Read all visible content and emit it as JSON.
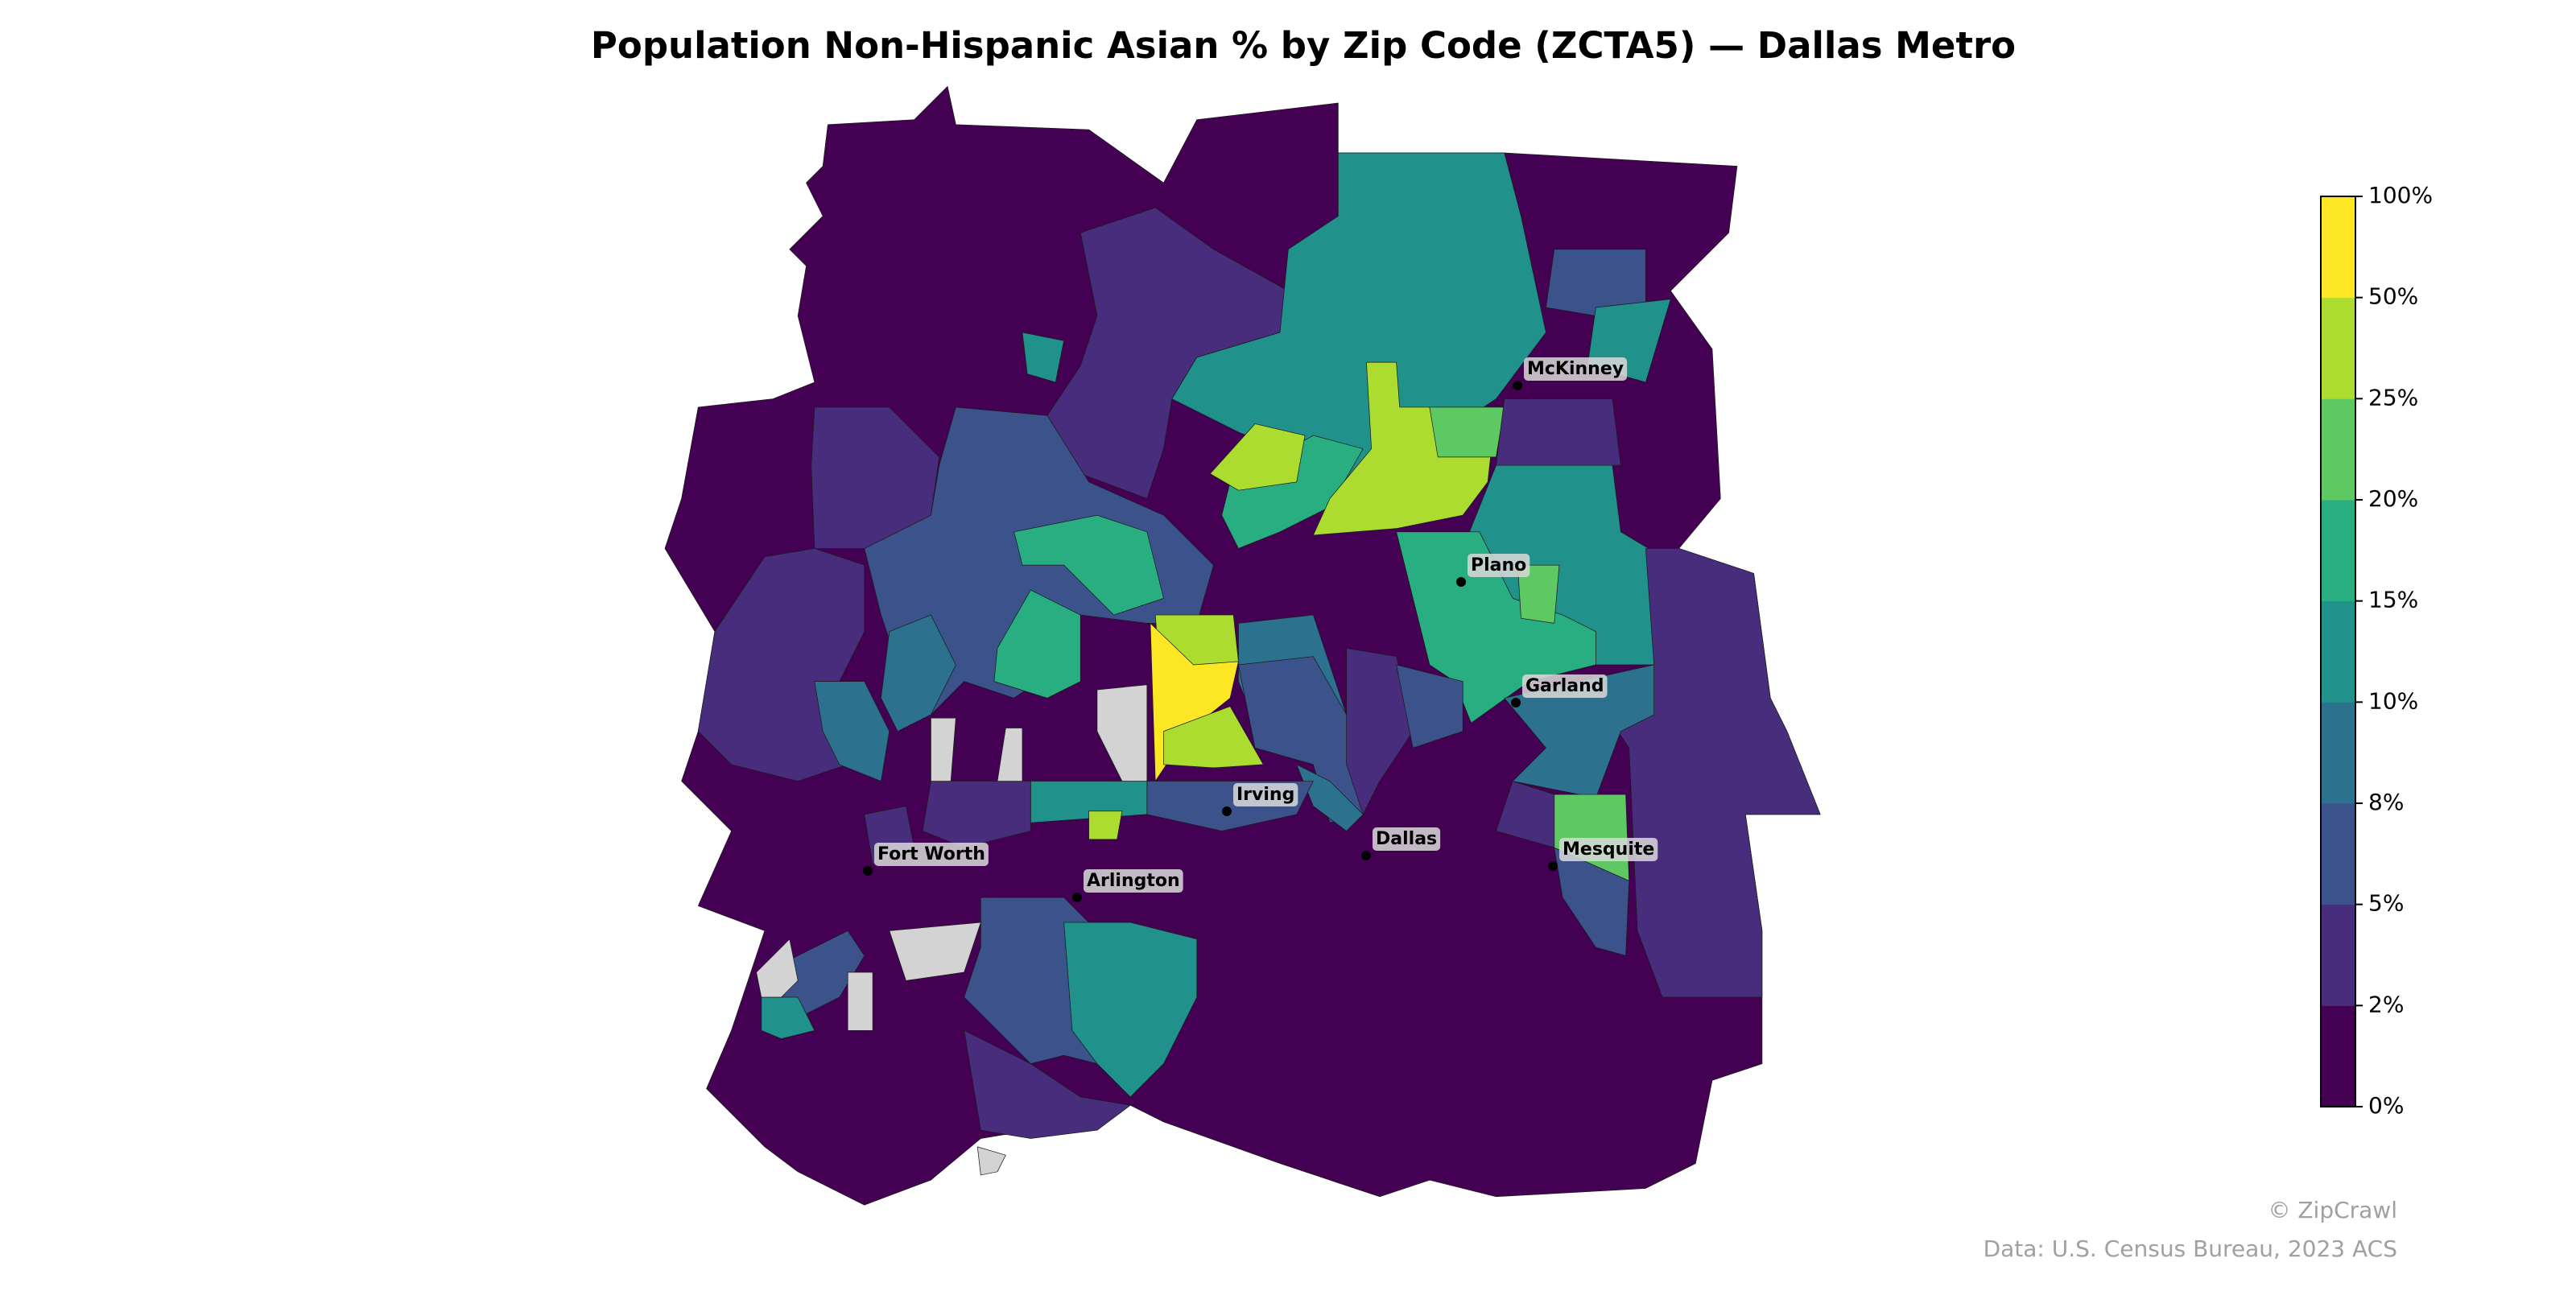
{
  "title": "Population Non-Hispanic Asian % by Zip Code (ZCTA5) — Dallas Metro",
  "colorbar": {
    "ticks": [
      {
        "value": 0,
        "label": "0%"
      },
      {
        "value": 2,
        "label": "2%"
      },
      {
        "value": 5,
        "label": "5%"
      },
      {
        "value": 8,
        "label": "8%"
      },
      {
        "value": 10,
        "label": "10%"
      },
      {
        "value": 15,
        "label": "15%"
      },
      {
        "value": 20,
        "label": "20%"
      },
      {
        "value": 25,
        "label": "25%"
      },
      {
        "value": 50,
        "label": "50%"
      },
      {
        "value": 100,
        "label": "100%"
      }
    ],
    "colors": [
      "#440154",
      "#472d7b",
      "#3b528b",
      "#2c728e",
      "#21918c",
      "#28ae80",
      "#5ec962",
      "#addc30",
      "#fde725"
    ]
  },
  "cities": [
    "McKinney",
    "Plano",
    "Garland",
    "Irving",
    "Dallas",
    "Mesquite",
    "Fort Worth",
    "Arlington"
  ],
  "credit": "© ZipCrawl",
  "source": "Data: U.S. Census Bureau, 2023 ACS"
}
